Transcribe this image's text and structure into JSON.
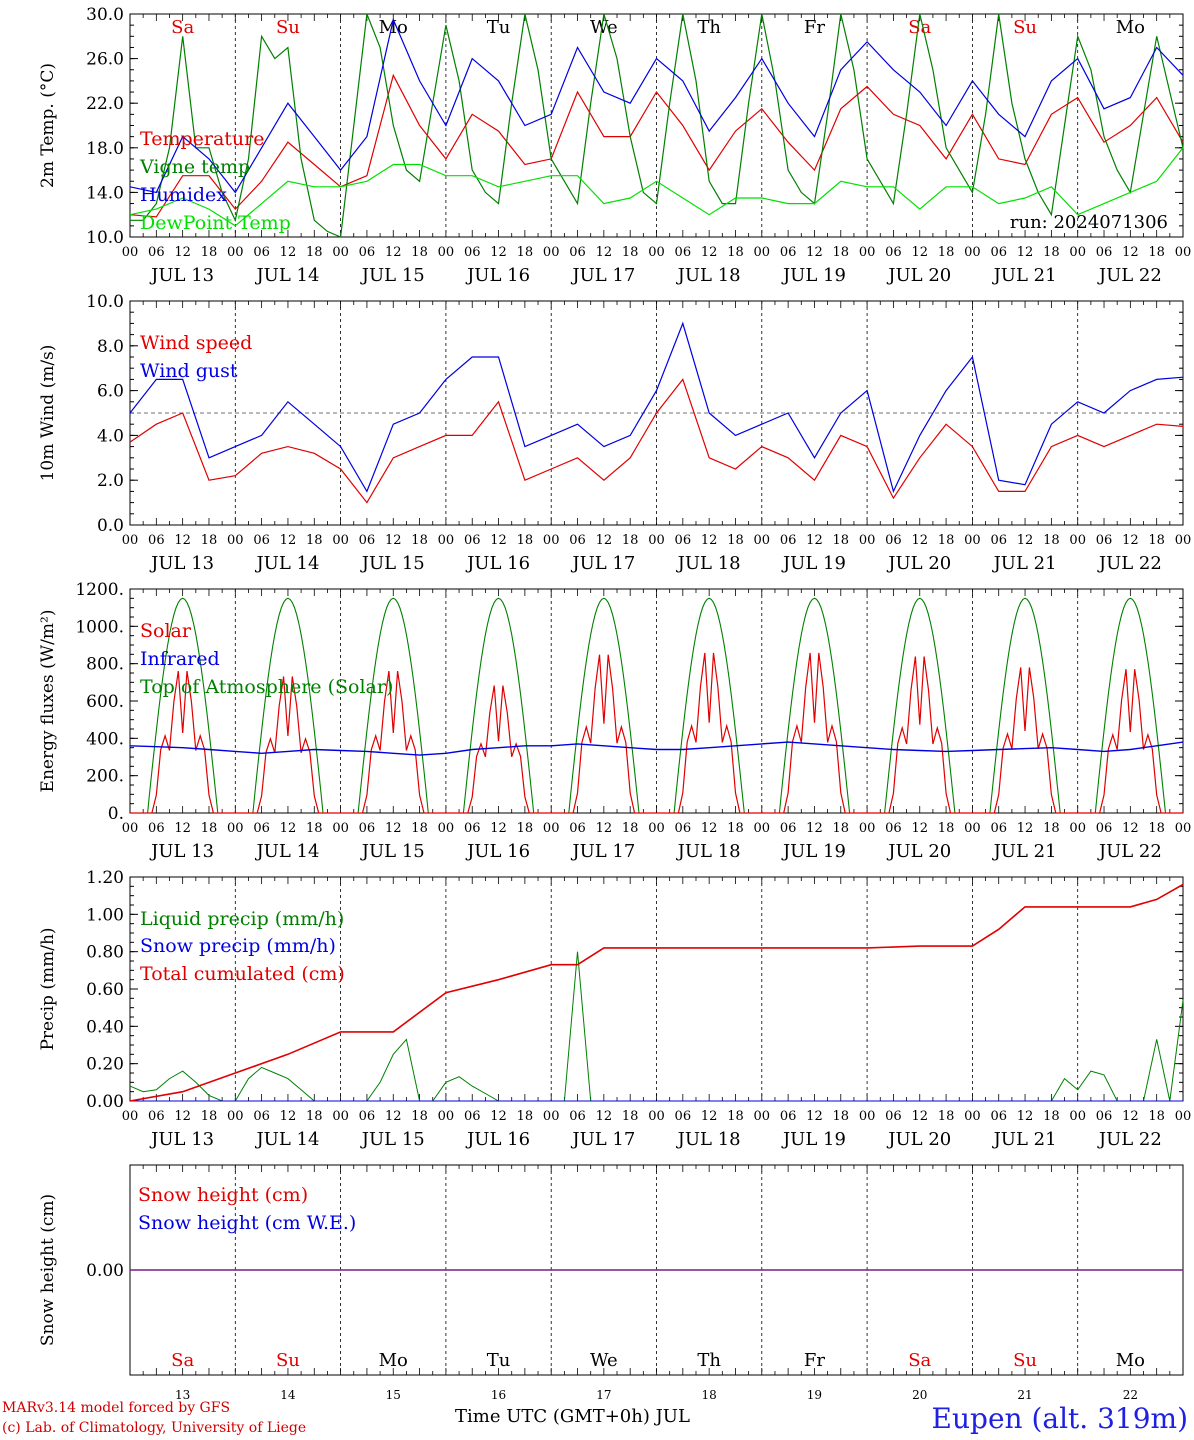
{
  "chart_data": [
    {
      "type": "line",
      "ylabel": "2m Temp. (°C)",
      "ylim": [
        10,
        30
      ],
      "yticks": [
        "10.0",
        "14.0",
        "18.0",
        "22.0",
        "26.0",
        "30.0"
      ],
      "run_label": "run: 2024071306",
      "day_names": [
        "Sa",
        "Su",
        "Mo",
        "Tu",
        "We",
        "Th",
        "Fr",
        "Sa",
        "Su",
        "Mo"
      ],
      "day_colors": [
        "#e00000",
        "#e00000",
        "#000000",
        "#000000",
        "#000000",
        "#000000",
        "#000000",
        "#e00000",
        "#e00000",
        "#000000"
      ],
      "series": [
        {
          "name": "Temperature",
          "color": "#e00000",
          "x": [
            0,
            6,
            12,
            18,
            24,
            30,
            36,
            42,
            48,
            54,
            60,
            66,
            72,
            78,
            84,
            90,
            96,
            102,
            108,
            114,
            120,
            126,
            132,
            138,
            144,
            150,
            156,
            162,
            168,
            174,
            180,
            186,
            192,
            198,
            204,
            210,
            216,
            222,
            228,
            234,
            240
          ],
          "y": [
            12.0,
            11.8,
            15.5,
            15.5,
            12.5,
            15.0,
            18.5,
            16.5,
            14.5,
            15.5,
            24.5,
            20.0,
            17.0,
            21.0,
            19.5,
            16.5,
            17.0,
            23.0,
            19.0,
            19.0,
            23.0,
            20.0,
            16.0,
            19.5,
            21.5,
            18.5,
            16.0,
            21.5,
            23.5,
            21.0,
            20.0,
            17.0,
            21.0,
            17.0,
            16.5,
            21.0,
            22.5,
            18.5,
            20.0,
            22.5,
            18.5
          ]
        },
        {
          "name": "Vigne temp",
          "color": "#008000",
          "x": [
            0,
            3,
            6,
            9,
            12,
            15,
            18,
            21,
            24,
            27,
            30,
            33,
            36,
            39,
            42,
            45,
            48,
            51,
            54,
            57,
            60,
            63,
            66,
            69,
            72,
            75,
            78,
            81,
            84,
            87,
            90,
            93,
            96,
            99,
            102,
            105,
            108,
            111,
            114,
            117,
            120,
            123,
            126,
            129,
            132,
            135,
            138,
            141,
            144,
            147,
            150,
            153,
            156,
            159,
            162,
            165,
            168,
            171,
            174,
            177,
            180,
            183,
            186,
            189,
            192,
            195,
            198,
            201,
            204,
            207,
            210,
            213,
            216,
            219,
            222,
            225,
            228,
            231,
            234,
            237,
            240
          ],
          "y": [
            11.5,
            11.5,
            13.0,
            18.0,
            28.0,
            18.0,
            18.0,
            14.0,
            11.5,
            17.0,
            28.0,
            26.0,
            27.0,
            17.0,
            11.5,
            10.5,
            10.0,
            20.0,
            31.0,
            27.0,
            20.0,
            16.0,
            15.0,
            22.0,
            29.0,
            24.0,
            16.0,
            14.0,
            13.0,
            22.0,
            30.0,
            25.0,
            17.0,
            15.0,
            13.0,
            22.0,
            30.0,
            26.0,
            19.0,
            14.0,
            13.0,
            22.0,
            30.0,
            24.0,
            15.0,
            13.0,
            13.0,
            22.0,
            30.0,
            24.0,
            16.0,
            14.0,
            13.0,
            21.0,
            30.0,
            25.0,
            17.0,
            15.0,
            13.0,
            21.0,
            30.0,
            25.0,
            18.0,
            16.0,
            14.0,
            21.0,
            30.0,
            22.0,
            17.0,
            14.0,
            12.0,
            20.0,
            28.0,
            25.0,
            19.0,
            16.0,
            14.0,
            21.0,
            28.0,
            23.0,
            18.0
          ]
        },
        {
          "name": "Humidex",
          "color": "#0000e0",
          "x": [
            0,
            6,
            12,
            18,
            24,
            30,
            36,
            42,
            48,
            54,
            60,
            66,
            72,
            78,
            84,
            90,
            96,
            102,
            108,
            114,
            120,
            126,
            132,
            138,
            144,
            150,
            156,
            162,
            168,
            174,
            180,
            186,
            192,
            198,
            204,
            210,
            216,
            222,
            228,
            234,
            240
          ],
          "y": [
            14.5,
            14.0,
            19.0,
            17.0,
            14.0,
            18.0,
            22.0,
            19.0,
            16.0,
            19.0,
            29.5,
            24.0,
            20.0,
            26.0,
            24.0,
            20.0,
            21.0,
            27.0,
            23.0,
            22.0,
            26.0,
            24.0,
            19.5,
            22.5,
            26.0,
            22.0,
            19.0,
            25.0,
            27.5,
            25.0,
            23.0,
            20.0,
            24.0,
            21.0,
            19.0,
            24.0,
            26.0,
            21.5,
            22.5,
            27.0,
            24.5
          ]
        },
        {
          "name": "DewPoint Temp",
          "color": "#00e000",
          "x": [
            0,
            6,
            12,
            18,
            24,
            30,
            36,
            42,
            48,
            54,
            60,
            66,
            72,
            78,
            84,
            90,
            96,
            102,
            108,
            114,
            120,
            126,
            132,
            138,
            144,
            150,
            156,
            162,
            168,
            174,
            180,
            186,
            192,
            198,
            204,
            210,
            216,
            222,
            228,
            234,
            240
          ],
          "y": [
            12.0,
            12.5,
            13.5,
            12.5,
            11.0,
            13.0,
            15.0,
            14.5,
            14.5,
            15.0,
            16.5,
            16.5,
            15.5,
            15.5,
            14.5,
            15.0,
            15.5,
            15.5,
            13.0,
            13.5,
            15.0,
            13.5,
            12.0,
            13.5,
            13.5,
            13.0,
            13.0,
            15.0,
            14.5,
            14.5,
            12.5,
            14.5,
            14.5,
            13.0,
            13.5,
            14.5,
            12.0,
            13.0,
            14.0,
            15.0,
            18.0
          ]
        }
      ]
    },
    {
      "type": "line",
      "ylabel": "10m Wind (m/s)",
      "ylim": [
        0,
        10
      ],
      "yticks": [
        "0.0",
        "2.0",
        "4.0",
        "6.0",
        "8.0",
        "10.0"
      ],
      "series": [
        {
          "name": "Wind speed",
          "color": "#e00000",
          "x": [
            0,
            6,
            12,
            18,
            24,
            30,
            36,
            42,
            48,
            54,
            60,
            66,
            72,
            78,
            84,
            90,
            96,
            102,
            108,
            114,
            120,
            126,
            132,
            138,
            144,
            150,
            156,
            162,
            168,
            174,
            180,
            186,
            192,
            198,
            204,
            210,
            216,
            222,
            228,
            234,
            240
          ],
          "y": [
            3.7,
            4.5,
            5.0,
            2.0,
            2.2,
            3.2,
            3.5,
            3.2,
            2.5,
            1.0,
            3.0,
            3.5,
            4.0,
            4.0,
            5.5,
            2.0,
            2.5,
            3.0,
            2.0,
            3.0,
            5.0,
            6.5,
            3.0,
            2.5,
            3.5,
            3.0,
            2.0,
            4.0,
            3.5,
            1.2,
            3.0,
            4.5,
            3.5,
            1.5,
            1.5,
            3.5,
            4.0,
            3.5,
            4.0,
            4.5,
            4.4
          ]
        },
        {
          "name": "Wind gust",
          "color": "#0000e0",
          "x": [
            0,
            6,
            12,
            18,
            24,
            30,
            36,
            42,
            48,
            54,
            60,
            66,
            72,
            78,
            84,
            90,
            96,
            102,
            108,
            114,
            120,
            126,
            132,
            138,
            144,
            150,
            156,
            162,
            168,
            174,
            180,
            186,
            192,
            198,
            204,
            210,
            216,
            222,
            228,
            234,
            240
          ],
          "y": [
            5.0,
            6.5,
            6.5,
            3.0,
            3.5,
            4.0,
            5.5,
            4.5,
            3.5,
            1.5,
            4.5,
            5.0,
            6.5,
            7.5,
            7.5,
            3.5,
            4.0,
            4.5,
            3.5,
            4.0,
            6.0,
            9.0,
            5.0,
            4.0,
            4.5,
            5.0,
            3.0,
            5.0,
            6.0,
            1.5,
            4.0,
            6.0,
            7.5,
            2.0,
            1.8,
            4.5,
            5.5,
            5.0,
            6.0,
            6.5,
            6.6
          ]
        }
      ]
    },
    {
      "type": "line",
      "ylabel": "Energy fluxes (W/m²)",
      "ylim": [
        0,
        1200
      ],
      "yticks": [
        "0.",
        "200.",
        "400.",
        "600.",
        "800.",
        "1000.",
        "1200."
      ],
      "series": [
        {
          "name": "Solar",
          "color": "#e00000",
          "peaks": [
            780,
            750,
            780,
            700,
            870,
            880,
            880,
            860,
            800,
            790
          ]
        },
        {
          "name": "Infrared",
          "color": "#0000e0",
          "values": [
            360,
            355,
            350,
            340,
            330,
            320,
            330,
            340,
            335,
            330,
            320,
            310,
            320,
            340,
            350,
            360,
            360,
            370,
            360,
            350,
            340,
            340,
            350,
            360,
            370,
            380,
            370,
            360,
            350,
            340,
            335,
            330,
            335,
            340,
            345,
            350,
            340,
            330,
            340,
            360,
            380
          ]
        },
        {
          "name": "Top of Atmosphere (Solar)",
          "color": "#008000",
          "peak": 1150
        }
      ]
    },
    {
      "type": "line",
      "ylabel": "Precip (mm/h)",
      "ylim": [
        0,
        1.2
      ],
      "yticks": [
        "0.00",
        "0.20",
        "0.40",
        "0.60",
        "0.80",
        "1.00",
        "1.20"
      ],
      "series": [
        {
          "name": "Liquid precip (mm/h)",
          "color": "#008000",
          "x": [
            0,
            3,
            6,
            9,
            12,
            15,
            18,
            21,
            24,
            27,
            30,
            33,
            36,
            39,
            42,
            45,
            48,
            51,
            54,
            57,
            60,
            63,
            66,
            69,
            72,
            75,
            78,
            81,
            84,
            87,
            90,
            93,
            96,
            99,
            102,
            105,
            108,
            111,
            114,
            117,
            120,
            210,
            213,
            216,
            219,
            222,
            225,
            228,
            231,
            234,
            237,
            240
          ],
          "y": [
            0.08,
            0.05,
            0.06,
            0.12,
            0.16,
            0.1,
            0.03,
            0.0,
            0.0,
            0.12,
            0.18,
            0.15,
            0.12,
            0.06,
            0.0,
            0.0,
            0.0,
            0.0,
            0.0,
            0.1,
            0.25,
            0.33,
            0.0,
            0.0,
            0.1,
            0.13,
            0.08,
            0.04,
            0.0,
            0.0,
            0.0,
            0.0,
            0.0,
            0.0,
            0.8,
            0.0,
            0.0,
            0.0,
            0.0,
            0.0,
            0.0,
            0.0,
            0.12,
            0.06,
            0.16,
            0.14,
            0.0,
            0.0,
            0.0,
            0.33,
            0.0,
            0.54
          ]
        },
        {
          "name": "Snow precip (mm/h)",
          "color": "#0000e0",
          "x": [
            0,
            240
          ],
          "y": [
            0,
            0
          ]
        },
        {
          "name": "Total cumulated (cm)",
          "color": "#e00000",
          "x": [
            0,
            12,
            24,
            36,
            48,
            60,
            72,
            84,
            96,
            102,
            108,
            120,
            144,
            168,
            180,
            192,
            198,
            204,
            216,
            228,
            234,
            240
          ],
          "y": [
            0.0,
            0.05,
            0.15,
            0.25,
            0.37,
            0.37,
            0.58,
            0.65,
            0.73,
            0.73,
            0.82,
            0.82,
            0.82,
            0.82,
            0.83,
            0.83,
            0.92,
            1.04,
            1.04,
            1.04,
            1.08,
            1.16
          ]
        }
      ]
    },
    {
      "type": "line",
      "ylabel": "Snow height (cm)",
      "yticks": [
        "0.00"
      ],
      "series": [
        {
          "name": "Snow height (cm)",
          "color": "#e00000"
        },
        {
          "name": "Snow height (cm W.E.)",
          "color": "#0000e0"
        }
      ],
      "day_names": [
        "Sa",
        "Su",
        "Mo",
        "Tu",
        "We",
        "Th",
        "Fr",
        "Sa",
        "Su",
        "Mo"
      ],
      "day_numbers": [
        "13",
        "14",
        "15",
        "16",
        "17",
        "18",
        "19",
        "20",
        "21",
        "22"
      ],
      "xlabel": "Time UTC (GMT+0h) JUL"
    }
  ],
  "x_axis": {
    "hour_labels": [
      "00",
      "06",
      "12",
      "18"
    ],
    "last_label": "00",
    "dates": [
      "JUL 13",
      "JUL 14",
      "JUL 15",
      "JUL 16",
      "JUL 17",
      "JUL 18",
      "JUL 19",
      "JUL 20",
      "JUL 21",
      "JUL 22"
    ]
  },
  "footer": {
    "model": "MARv3.14 model forced by GFS",
    "copyright": "(c) Lab. of Climatology, University of Liege",
    "station": "Eupen (alt. 319m)"
  }
}
